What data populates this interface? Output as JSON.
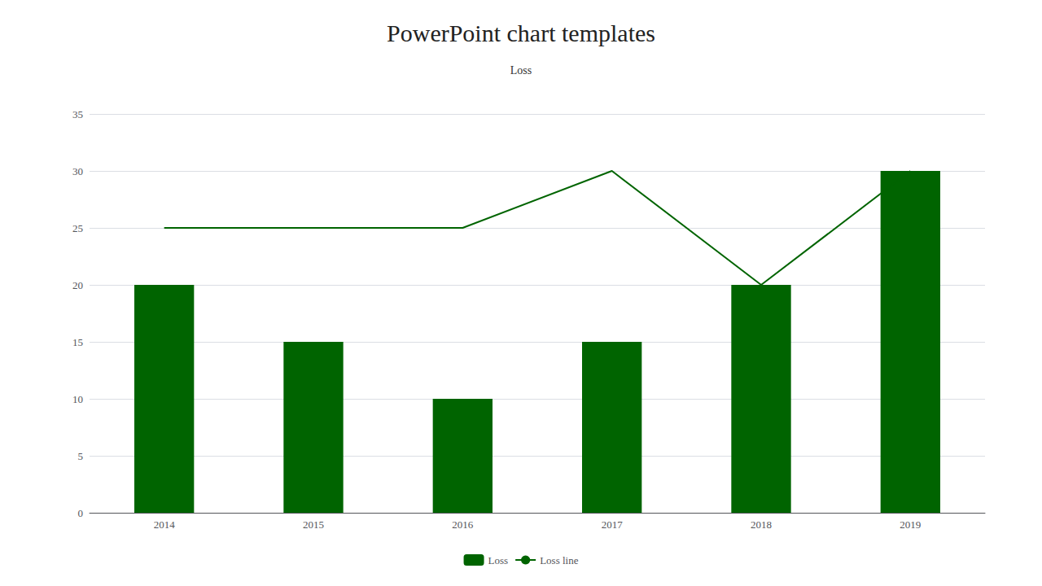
{
  "chart_data": {
    "type": "bar",
    "title": "PowerPoint chart templates",
    "subtitle": "Loss",
    "categories": [
      "2014",
      "2015",
      "2016",
      "2017",
      "2018",
      "2019"
    ],
    "series": [
      {
        "name": "Loss",
        "type": "bar",
        "color": "#006400",
        "values": [
          20,
          15,
          10,
          15,
          20,
          30
        ]
      },
      {
        "name": "Loss line",
        "type": "line",
        "color": "#006400",
        "values": [
          25,
          25,
          25,
          30,
          20,
          30
        ]
      }
    ],
    "ylim": [
      0,
      35
    ],
    "yticks": [
      0,
      5,
      10,
      15,
      20,
      25,
      30,
      35
    ],
    "grid": true,
    "legend": "bottom"
  }
}
